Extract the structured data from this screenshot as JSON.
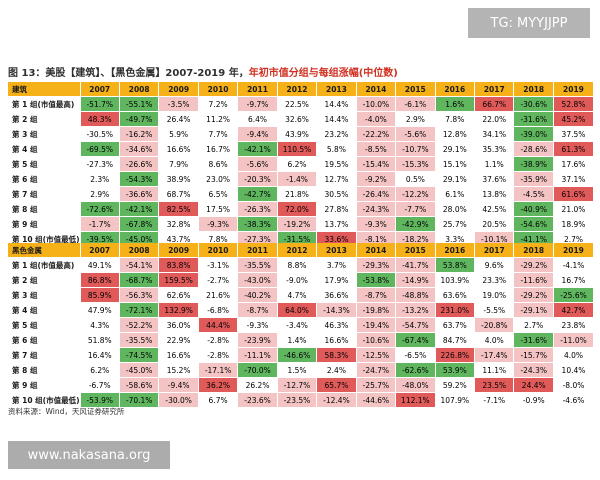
{
  "watermark_top": "TG: MYYJJPP",
  "caption": {
    "main": "图 13：美股【建筑】、【黑色金属】2007-2019 年，",
    "highlight": "年初市值分组与每组涨幅(中位数)"
  },
  "years": [
    "2007",
    "2008",
    "2009",
    "2010",
    "2011",
    "2012",
    "2013",
    "2014",
    "2015",
    "2016",
    "2017",
    "2018",
    "2019"
  ],
  "colors": {
    "header": "#f5b117",
    "strong_red": "#e05a5a",
    "light_red": "#f4c4c4",
    "strong_green": "#5fb65f",
    "light_green": "#c9e7c4"
  },
  "tables": [
    {
      "title": "建筑",
      "rows": [
        {
          "label": "第 1 组(市值最高)",
          "values": [
            "-51.7%",
            "-55.1%",
            "-3.5%",
            "7.2%",
            "-9.7%",
            "22.5%",
            "14.4%",
            "-10.0%",
            "-6.1%",
            "1.6%",
            "66.7%",
            "-30.6%",
            "52.8%"
          ]
        },
        {
          "label": "第 2 组",
          "values": [
            "48.3%",
            "-49.7%",
            "26.4%",
            "11.2%",
            "6.4%",
            "32.6%",
            "14.4%",
            "-4.0%",
            "2.9%",
            "7.8%",
            "22.0%",
            "-31.6%",
            "45.2%"
          ]
        },
        {
          "label": "第 3 组",
          "values": [
            "-30.5%",
            "-16.2%",
            "5.9%",
            "7.7%",
            "-9.4%",
            "43.9%",
            "23.2%",
            "-22.2%",
            "-5.6%",
            "12.8%",
            "34.1%",
            "-39.0%",
            "37.5%"
          ]
        },
        {
          "label": "第 4 组",
          "values": [
            "-69.5%",
            "-34.6%",
            "16.6%",
            "16.7%",
            "-42.1%",
            "110.5%",
            "5.8%",
            "-8.5%",
            "-10.7%",
            "29.1%",
            "35.3%",
            "-28.6%",
            "61.3%"
          ]
        },
        {
          "label": "第 5 组",
          "values": [
            "-27.3%",
            "-26.6%",
            "7.9%",
            "8.6%",
            "-5.6%",
            "6.2%",
            "19.5%",
            "-15.4%",
            "-15.3%",
            "15.1%",
            "1.1%",
            "-38.9%",
            "17.6%"
          ]
        },
        {
          "label": "第 6 组",
          "values": [
            "2.3%",
            "-54.3%",
            "38.9%",
            "23.0%",
            "-20.3%",
            "-1.4%",
            "12.7%",
            "-9.2%",
            "0.5%",
            "29.1%",
            "37.6%",
            "-35.9%",
            "37.1%"
          ]
        },
        {
          "label": "第 7 组",
          "values": [
            "2.9%",
            "-36.6%",
            "68.7%",
            "6.5%",
            "-42.7%",
            "21.8%",
            "30.5%",
            "-26.4%",
            "-12.2%",
            "6.1%",
            "13.8%",
            "-4.5%",
            "61.6%"
          ]
        },
        {
          "label": "第 8 组",
          "values": [
            "-72.6%",
            "-42.1%",
            "82.5%",
            "17.5%",
            "-26.3%",
            "72.0%",
            "27.8%",
            "-24.3%",
            "-7.7%",
            "28.0%",
            "42.5%",
            "-40.9%",
            "21.0%"
          ]
        },
        {
          "label": "第 9 组",
          "values": [
            "-1.7%",
            "-67.8%",
            "32.8%",
            "-9.3%",
            "-38.3%",
            "-19.2%",
            "13.7%",
            "-9.3%",
            "-42.9%",
            "25.7%",
            "20.5%",
            "-54.6%",
            "18.9%"
          ]
        },
        {
          "label": "第 10 组(市值最低)",
          "values": [
            "-39.5%",
            "-45.0%",
            "43.7%",
            "7.8%",
            "-27.3%",
            "-31.5%",
            "33.6%",
            "-8.1%",
            "-18.2%",
            "3.3%",
            "-10.1%",
            "-41.1%",
            "2.7%"
          ]
        }
      ],
      "levels": [
        [
          "G",
          "G",
          "L",
          "N",
          "L",
          "N",
          "N",
          "L",
          "L",
          "G",
          "R",
          "G",
          "R"
        ],
        [
          "R",
          "G",
          "N",
          "N",
          "N",
          "N",
          "N",
          "L",
          "N",
          "N",
          "N",
          "G",
          "R"
        ],
        [
          "N",
          "L",
          "N",
          "N",
          "L",
          "N",
          "N",
          "L",
          "L",
          "N",
          "N",
          "G",
          "N"
        ],
        [
          "G",
          "L",
          "N",
          "N",
          "G",
          "R",
          "N",
          "L",
          "L",
          "N",
          "N",
          "L",
          "R"
        ],
        [
          "N",
          "L",
          "N",
          "N",
          "L",
          "N",
          "N",
          "L",
          "L",
          "N",
          "N",
          "G",
          "N"
        ],
        [
          "N",
          "G",
          "N",
          "N",
          "L",
          "L",
          "N",
          "L",
          "N",
          "N",
          "N",
          "L",
          "N"
        ],
        [
          "N",
          "L",
          "N",
          "N",
          "G",
          "N",
          "N",
          "L",
          "L",
          "N",
          "N",
          "L",
          "R"
        ],
        [
          "G",
          "G",
          "R",
          "N",
          "L",
          "R",
          "N",
          "L",
          "L",
          "N",
          "N",
          "G",
          "N"
        ],
        [
          "L",
          "G",
          "N",
          "L",
          "G",
          "L",
          "N",
          "L",
          "G",
          "N",
          "N",
          "G",
          "N"
        ],
        [
          "G",
          "G",
          "N",
          "N",
          "L",
          "G",
          "R",
          "L",
          "L",
          "N",
          "L",
          "G",
          "N"
        ]
      ]
    },
    {
      "title": "黑色金属",
      "rows": [
        {
          "label": "第 1 组(市值最高)",
          "values": [
            "49.1%",
            "-54.1%",
            "83.8%",
            "-3.1%",
            "-35.5%",
            "8.8%",
            "3.7%",
            "-29.3%",
            "-41.7%",
            "53.8%",
            "9.6%",
            "-29.2%",
            "-4.1%"
          ]
        },
        {
          "label": "第 2 组",
          "values": [
            "86.8%",
            "-68.7%",
            "159.5%",
            "-2.7%",
            "-43.0%",
            "-9.0%",
            "17.9%",
            "-53.8%",
            "-14.9%",
            "103.9%",
            "23.3%",
            "-11.6%",
            "16.7%"
          ]
        },
        {
          "label": "第 3 组",
          "values": [
            "85.9%",
            "-56.3%",
            "62.6%",
            "21.6%",
            "-40.2%",
            "4.7%",
            "36.6%",
            "-8.7%",
            "-48.8%",
            "63.6%",
            "19.0%",
            "-29.2%",
            "-25.6%"
          ]
        },
        {
          "label": "第 4 组",
          "values": [
            "47.9%",
            "-72.1%",
            "132.9%",
            "-6.8%",
            "-8.7%",
            "64.0%",
            "-14.3%",
            "-19.8%",
            "-13.2%",
            "231.0%",
            "-5.5%",
            "-29.1%",
            "42.7%"
          ]
        },
        {
          "label": "第 5 组",
          "values": [
            "4.3%",
            "-52.2%",
            "36.0%",
            "44.4%",
            "-9.3%",
            "-3.4%",
            "46.3%",
            "-19.4%",
            "-54.7%",
            "63.7%",
            "-20.8%",
            "2.7%",
            "23.8%"
          ]
        },
        {
          "label": "第 6 组",
          "values": [
            "51.8%",
            "-35.5%",
            "22.9%",
            "-2.8%",
            "-23.9%",
            "1.4%",
            "16.6%",
            "-10.6%",
            "-67.4%",
            "84.7%",
            "4.0%",
            "-31.6%",
            "-11.0%"
          ]
        },
        {
          "label": "第 7 组",
          "values": [
            "16.4%",
            "-74.5%",
            "16.6%",
            "-2.8%",
            "-11.1%",
            "-46.6%",
            "58.3%",
            "-12.5%",
            "-6.5%",
            "226.8%",
            "-17.4%",
            "-15.7%",
            "4.0%"
          ]
        },
        {
          "label": "第 8 组",
          "values": [
            "6.2%",
            "-45.0%",
            "15.2%",
            "-17.1%",
            "-70.0%",
            "1.5%",
            "2.4%",
            "-24.7%",
            "-62.6%",
            "53.9%",
            "11.1%",
            "-24.3%",
            "10.4%"
          ]
        },
        {
          "label": "第 9 组",
          "values": [
            "-6.7%",
            "-58.6%",
            "-9.4%",
            "36.2%",
            "26.2%",
            "-12.7%",
            "65.7%",
            "-25.7%",
            "-48.0%",
            "59.2%",
            "23.5%",
            "24.4%",
            "-8.0%"
          ]
        },
        {
          "label": "第 10 组(市值最低)",
          "values": [
            "-53.9%",
            "-70.1%",
            "-30.0%",
            "6.7%",
            "-23.6%",
            "-23.5%",
            "-12.4%",
            "-44.6%",
            "112.1%",
            "107.9%",
            "-7.1%",
            "-0.9%",
            "-4.6%"
          ]
        }
      ],
      "levels": [
        [
          "N",
          "L",
          "R",
          "N",
          "L",
          "N",
          "N",
          "L",
          "L",
          "G",
          "N",
          "L",
          "N"
        ],
        [
          "R",
          "G",
          "R",
          "N",
          "L",
          "N",
          "N",
          "G",
          "L",
          "N",
          "N",
          "L",
          "N"
        ],
        [
          "R",
          "L",
          "N",
          "N",
          "L",
          "N",
          "N",
          "L",
          "L",
          "N",
          "N",
          "L",
          "G"
        ],
        [
          "N",
          "G",
          "R",
          "N",
          "L",
          "R",
          "L",
          "L",
          "L",
          "R",
          "N",
          "L",
          "R"
        ],
        [
          "N",
          "L",
          "N",
          "R",
          "N",
          "N",
          "N",
          "L",
          "L",
          "N",
          "L",
          "N",
          "N"
        ],
        [
          "N",
          "L",
          "N",
          "N",
          "L",
          "N",
          "N",
          "L",
          "G",
          "N",
          "N",
          "G",
          "L"
        ],
        [
          "N",
          "G",
          "N",
          "N",
          "L",
          "G",
          "R",
          "L",
          "N",
          "R",
          "L",
          "L",
          "N"
        ],
        [
          "N",
          "L",
          "N",
          "L",
          "G",
          "N",
          "N",
          "L",
          "G",
          "G",
          "N",
          "L",
          "N"
        ],
        [
          "N",
          "L",
          "L",
          "R",
          "N",
          "L",
          "R",
          "L",
          "L",
          "N",
          "R",
          "R",
          "N"
        ],
        [
          "G",
          "G",
          "L",
          "N",
          "L",
          "L",
          "L",
          "L",
          "R",
          "N",
          "N",
          "N",
          "N"
        ]
      ]
    }
  ],
  "source": "资料来源：Wind，天风证券研究所",
  "watermark_bottom": "www.nakasana.org"
}
